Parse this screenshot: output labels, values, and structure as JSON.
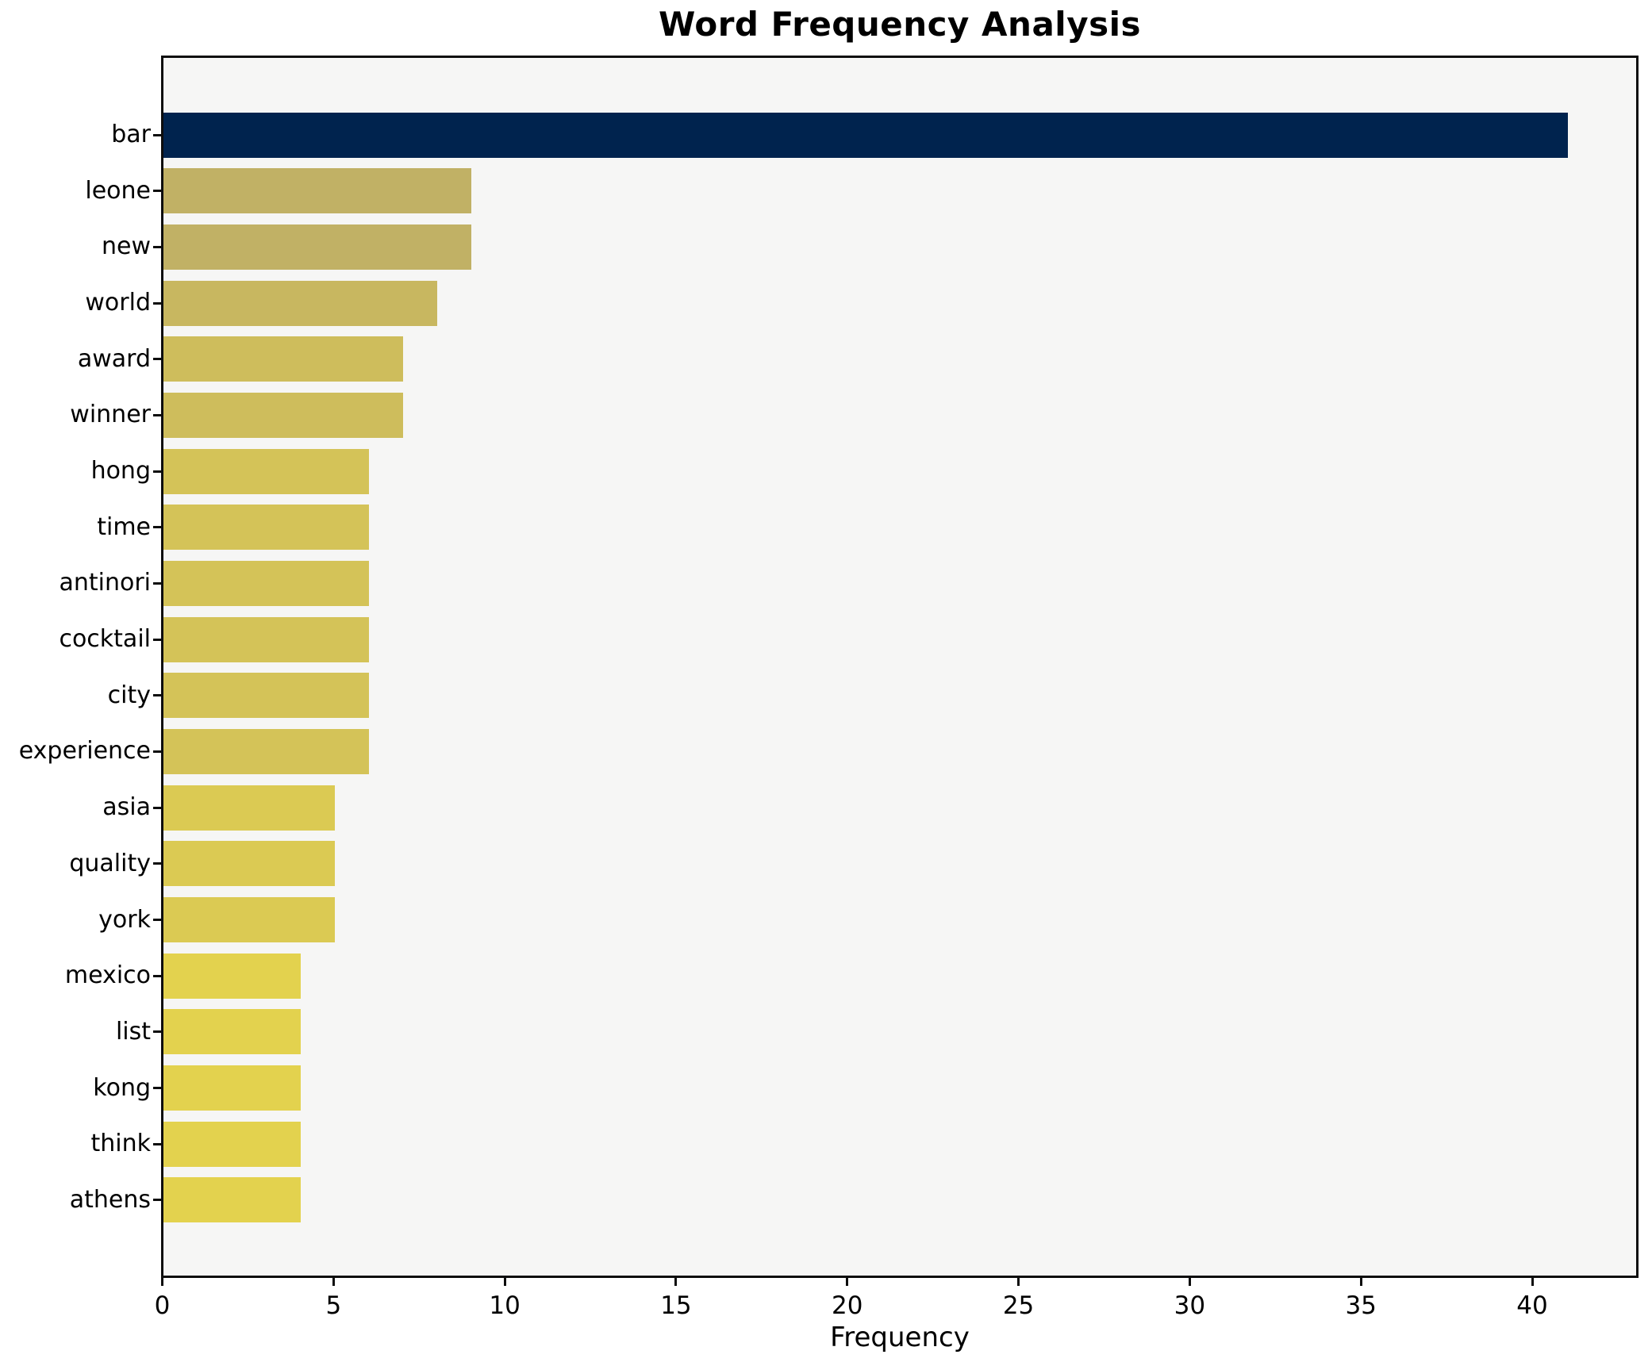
{
  "chart_data": {
    "type": "bar",
    "orientation": "horizontal",
    "title": "Word Frequency Analysis",
    "xlabel": "Frequency",
    "ylabel": "",
    "categories": [
      "bar",
      "leone",
      "new",
      "world",
      "award",
      "winner",
      "hong",
      "time",
      "antinori",
      "cocktail",
      "city",
      "experience",
      "asia",
      "quality",
      "york",
      "mexico",
      "list",
      "kong",
      "think",
      "athens"
    ],
    "values": [
      41,
      9,
      9,
      8,
      7,
      7,
      6,
      6,
      6,
      6,
      6,
      6,
      5,
      5,
      5,
      4,
      4,
      4,
      4,
      4
    ],
    "bar_colors": [
      "#00234E",
      "#C1B165",
      "#C1B165",
      "#C8B760",
      "#CEBD5C",
      "#CEBD5C",
      "#D4C358",
      "#D4C358",
      "#D4C358",
      "#D4C358",
      "#D4C358",
      "#D4C358",
      "#DBCA53",
      "#DBCA53",
      "#DBCA53",
      "#E3D24E",
      "#E3D24E",
      "#E3D24E",
      "#E3D24E",
      "#E3D24E"
    ],
    "xlim": [
      0,
      43
    ],
    "xticks": [
      0,
      5,
      10,
      15,
      20,
      25,
      30,
      35,
      40
    ],
    "grid": false,
    "legend": null,
    "plot_background": "#F6F6F5",
    "figure_background": "#FFFFFF",
    "spine_color": "#0D0D0D"
  }
}
